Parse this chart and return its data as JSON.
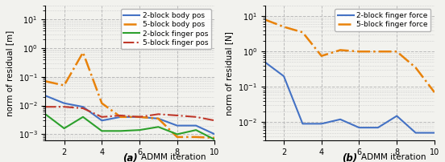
{
  "left": {
    "ylabel": "norm of residual [m]",
    "label_letter": "a",
    "label_rest": " ADMM iteration",
    "ylim": [
      0.0006,
      30.0
    ],
    "xlim": [
      1,
      10
    ],
    "xticks": [
      2,
      4,
      6,
      8,
      10
    ],
    "yticks": [
      0.001,
      0.01,
      0.1,
      1.0,
      10.0
    ],
    "series": [
      {
        "label": "2-block body pos",
        "color": "#4472c4",
        "linestyle": "-",
        "linewidth": 1.5,
        "x": [
          1,
          2,
          3,
          4,
          5,
          6,
          7,
          8,
          9,
          10
        ],
        "y": [
          0.022,
          0.012,
          0.009,
          0.003,
          0.004,
          0.004,
          0.0035,
          0.002,
          0.002,
          0.001
        ]
      },
      {
        "label": "5-block body pos",
        "color": "#e8820a",
        "linestyle": "-.",
        "linewidth": 1.8,
        "x": [
          1,
          2,
          3,
          4,
          5,
          6,
          7,
          8,
          9,
          10
        ],
        "y": [
          0.07,
          0.05,
          0.7,
          0.012,
          0.004,
          0.004,
          0.0035,
          0.0008,
          0.0008,
          0.00075
        ]
      },
      {
        "label": "2-block finger pos",
        "color": "#2ca02c",
        "linestyle": "-",
        "linewidth": 1.5,
        "x": [
          1,
          2,
          3,
          4,
          5,
          6,
          7,
          8,
          9,
          10
        ],
        "y": [
          0.005,
          0.0016,
          0.004,
          0.0013,
          0.0013,
          0.0014,
          0.0018,
          0.001,
          0.0014,
          0.00065
        ]
      },
      {
        "label": "5-block finger pos",
        "color": "#c0392b",
        "linestyle": "-.",
        "linewidth": 1.5,
        "x": [
          1,
          2,
          3,
          4,
          5,
          6,
          7,
          8,
          9,
          10
        ],
        "y": [
          0.009,
          0.009,
          0.008,
          0.004,
          0.0045,
          0.004,
          0.005,
          0.0045,
          0.004,
          0.003
        ]
      }
    ]
  },
  "right": {
    "ylabel": "norm of residual [N]",
    "label_letter": "b",
    "label_rest": " ADMM iteration",
    "ylim": [
      0.003,
      20.0
    ],
    "xlim": [
      1,
      10
    ],
    "xticks": [
      2,
      4,
      6,
      8,
      10
    ],
    "yticks": [
      0.01,
      0.1,
      1.0,
      10.0
    ],
    "series": [
      {
        "label": "2-block finger force",
        "color": "#4472c4",
        "linestyle": "-",
        "linewidth": 1.5,
        "x": [
          1,
          2,
          3,
          4,
          5,
          6,
          7,
          8,
          9,
          10
        ],
        "y": [
          0.5,
          0.2,
          0.009,
          0.009,
          0.012,
          0.007,
          0.007,
          0.015,
          0.005,
          0.005
        ]
      },
      {
        "label": "5-block finger force",
        "color": "#e8820a",
        "linestyle": "-.",
        "linewidth": 1.8,
        "x": [
          1,
          2,
          3,
          4,
          5,
          6,
          7,
          8,
          9,
          10
        ],
        "y": [
          8.0,
          5.0,
          3.5,
          0.75,
          1.1,
          1.0,
          1.0,
          1.0,
          0.35,
          0.07
        ]
      }
    ]
  },
  "figure_bg": "#f2f2ee",
  "axes_bg": "#f2f2ee",
  "grid_color": "#bbbbbb",
  "label_fontsize": 7.5,
  "tick_fontsize": 7,
  "xlabel_bold_fontsize": 8.5,
  "legend_fontsize": 6.5
}
